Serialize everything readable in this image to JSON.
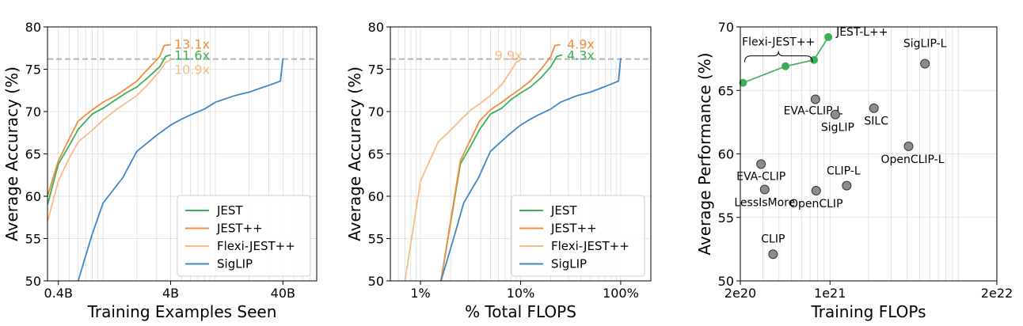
{
  "chart_data": [
    {
      "type": "line",
      "xscale": "log",
      "xlabel": "Training Examples Seen",
      "ylabel": "Average Accuracy (%)",
      "xlim": [
        0.32,
        80
      ],
      "ylim": [
        50,
        80
      ],
      "xticks": [
        {
          "v": 0.4,
          "label": "0.4B"
        },
        {
          "v": 4,
          "label": "4B"
        },
        {
          "v": 40,
          "label": "40B"
        }
      ],
      "yticks": [
        50,
        55,
        60,
        65,
        70,
        75,
        80
      ],
      "hline": 76.2,
      "series": [
        {
          "name": "JEST",
          "color": "#3cae5a",
          "points": [
            [
              0.32,
              59
            ],
            [
              0.4,
              63.8
            ],
            [
              0.5,
              66
            ],
            [
              0.6,
              67.9
            ],
            [
              0.8,
              69.7
            ],
            [
              1.0,
              70.4
            ],
            [
              1.3,
              71.4
            ],
            [
              1.6,
              72.2
            ],
            [
              2.0,
              72.9
            ],
            [
              2.5,
              74.0
            ],
            [
              3.2,
              75.3
            ],
            [
              3.6,
              76.5
            ],
            [
              4.0,
              76.7
            ]
          ]
        },
        {
          "name": "JEST++",
          "color": "#f08c3a",
          "points": [
            [
              0.32,
              60
            ],
            [
              0.4,
              64.2
            ],
            [
              0.5,
              66.8
            ],
            [
              0.6,
              68.9
            ],
            [
              0.8,
              70.2
            ],
            [
              1.0,
              71.1
            ],
            [
              1.3,
              71.9
            ],
            [
              1.6,
              72.7
            ],
            [
              2.0,
              73.6
            ],
            [
              2.5,
              75.0
            ],
            [
              3.2,
              76.5
            ],
            [
              3.5,
              77.8
            ],
            [
              4.0,
              77.9
            ]
          ]
        },
        {
          "name": "Flexi-JEST++",
          "color": "#f7bc86",
          "points": [
            [
              0.32,
              57
            ],
            [
              0.4,
              61.8
            ],
            [
              0.5,
              64.5
            ],
            [
              0.6,
              66.4
            ],
            [
              0.8,
              67.8
            ],
            [
              1.0,
              69.0
            ],
            [
              1.3,
              70.2
            ],
            [
              1.6,
              71.0
            ],
            [
              2.0,
              71.9
            ],
            [
              2.5,
              73.2
            ],
            [
              3.2,
              74.8
            ],
            [
              3.6,
              75.8
            ],
            [
              4.0,
              76.1
            ]
          ]
        },
        {
          "name": "SigLIP",
          "color": "#3f88c5",
          "points": [
            [
              0.6,
              50
            ],
            [
              0.8,
              55.5
            ],
            [
              1.0,
              59.2
            ],
            [
              1.5,
              62.2
            ],
            [
              2.0,
              65.3
            ],
            [
              3.0,
              67.2
            ],
            [
              4.0,
              68.4
            ],
            [
              5.0,
              69.1
            ],
            [
              6.0,
              69.6
            ],
            [
              8.0,
              70.3
            ],
            [
              10,
              71.1
            ],
            [
              15,
              71.9
            ],
            [
              20,
              72.3
            ],
            [
              30,
              73.1
            ],
            [
              38,
              73.6
            ],
            [
              40,
              76.3
            ]
          ]
        }
      ],
      "annotations": [
        {
          "text": "13.1x",
          "color": "#f08c3a",
          "x": 4.3,
          "y": 78.0
        },
        {
          "text": "11.6x",
          "color": "#3cae5a",
          "x": 4.3,
          "y": 76.7
        },
        {
          "text": "10.9x",
          "color": "#f7bc86",
          "x": 4.3,
          "y": 75.0
        }
      ],
      "legend": {
        "position": "bottom-right",
        "entries": [
          "JEST",
          "JEST++",
          "Flexi-JEST++",
          "SigLIP"
        ]
      }
    },
    {
      "type": "line",
      "xscale": "log",
      "xlabel": "% Total FLOPS",
      "ylabel": "Average Accuracy (%)",
      "xlim": [
        0.5,
        200
      ],
      "ylim": [
        50,
        80
      ],
      "xticks": [
        {
          "v": 1,
          "label": "1%"
        },
        {
          "v": 10,
          "label": "10%"
        },
        {
          "v": 100,
          "label": "100%"
        }
      ],
      "yticks": [
        50,
        55,
        60,
        65,
        70,
        75,
        80
      ],
      "hline": 76.2,
      "series": [
        {
          "name": "JEST",
          "color": "#3cae5a",
          "points": [
            [
              1.6,
              50
            ],
            [
              2.5,
              63.8
            ],
            [
              3.2,
              66
            ],
            [
              3.9,
              67.9
            ],
            [
              5,
              69.7
            ],
            [
              6.5,
              70.4
            ],
            [
              8,
              71.4
            ],
            [
              10,
              72.2
            ],
            [
              12.5,
              72.9
            ],
            [
              16,
              74.0
            ],
            [
              20,
              75.3
            ],
            [
              23,
              76.5
            ],
            [
              26,
              76.7
            ]
          ]
        },
        {
          "name": "JEST++",
          "color": "#f08c3a",
          "points": [
            [
              1.6,
              50
            ],
            [
              2.5,
              64.2
            ],
            [
              3.2,
              66.8
            ],
            [
              3.9,
              68.9
            ],
            [
              5,
              70.2
            ],
            [
              6.5,
              71.1
            ],
            [
              8,
              71.9
            ],
            [
              10,
              72.7
            ],
            [
              12.5,
              73.6
            ],
            [
              16,
              75.0
            ],
            [
              20,
              76.5
            ],
            [
              22,
              77.8
            ],
            [
              25,
              77.9
            ]
          ]
        },
        {
          "name": "Flexi-JEST++",
          "color": "#f7bc86",
          "points": [
            [
              0.7,
              50
            ],
            [
              1.0,
              61.8
            ],
            [
              1.5,
              66.4
            ],
            [
              2,
              67.8
            ],
            [
              2.5,
              69.0
            ],
            [
              3.2,
              70.2
            ],
            [
              4,
              71.0
            ],
            [
              5,
              71.9
            ],
            [
              6.5,
              73.2
            ],
            [
              8,
              74.8
            ],
            [
              9,
              75.8
            ],
            [
              10,
              76.1
            ]
          ]
        },
        {
          "name": "SigLIP",
          "color": "#3f88c5",
          "points": [
            [
              1.6,
              50
            ],
            [
              2.2,
              55.5
            ],
            [
              2.7,
              59.2
            ],
            [
              3.8,
              62.2
            ],
            [
              5,
              65.3
            ],
            [
              7.5,
              67.2
            ],
            [
              10,
              68.4
            ],
            [
              12.5,
              69.1
            ],
            [
              15,
              69.6
            ],
            [
              20,
              70.3
            ],
            [
              25,
              71.1
            ],
            [
              37,
              71.9
            ],
            [
              50,
              72.3
            ],
            [
              75,
              73.1
            ],
            [
              95,
              73.6
            ],
            [
              100,
              76.3
            ]
          ]
        }
      ],
      "annotations": [
        {
          "text": "4.9x",
          "color": "#f08c3a",
          "x": 29,
          "y": 78.0
        },
        {
          "text": "4.3x",
          "color": "#3cae5a",
          "x": 29,
          "y": 76.7
        },
        {
          "text": "9.9x",
          "color": "#f7bc86",
          "x": 5.5,
          "y": 76.7
        }
      ],
      "legend": {
        "position": "bottom-right",
        "entries": [
          "JEST",
          "JEST++",
          "Flexi-JEST++",
          "SigLIP"
        ]
      }
    },
    {
      "type": "scatter",
      "xscale": "log",
      "xlabel": "Training FLOPs",
      "ylabel": "Average Performance (%)",
      "xlim": [
        2e+20,
        2e+22
      ],
      "ylim": [
        50,
        70
      ],
      "xticks": [
        {
          "v": 2e+20,
          "label": "2e20"
        },
        {
          "v": 1e+21,
          "label": "1e21"
        },
        {
          "v": 2e+22,
          "label": "2e22"
        }
      ],
      "yticks": [
        50,
        55,
        60,
        65,
        70
      ],
      "line_series": {
        "name": "JEST",
        "color": "#3cae5a",
        "points": [
          {
            "label": "",
            "x": 2.1e+20,
            "y": 65.6
          },
          {
            "label": "",
            "x": 4.5e+20,
            "y": 66.9
          },
          {
            "label": "",
            "x": 7.5e+20,
            "y": 67.4
          },
          {
            "label": "JEST-L++",
            "x": 9.7e+20,
            "y": 69.2
          }
        ]
      },
      "bracket_label": "Flexi-JEST++",
      "points": [
        {
          "label": "SigLIP-L",
          "x": 5.5e+21,
          "y": 67.1
        },
        {
          "label": "EVA-CLIP-L",
          "x": 7.7e+20,
          "y": 64.3
        },
        {
          "label": "SigLIP",
          "x": 1.1e+21,
          "y": 63.1
        },
        {
          "label": "SILC",
          "x": 2.2e+21,
          "y": 63.6
        },
        {
          "label": "OpenCLIP-L",
          "x": 4.1e+21,
          "y": 60.6
        },
        {
          "label": "EVA-CLIP",
          "x": 2.9e+20,
          "y": 59.2
        },
        {
          "label": "LessIsMore",
          "x": 3.1e+20,
          "y": 57.2
        },
        {
          "label": "CLIP-L",
          "x": 1.35e+21,
          "y": 57.5
        },
        {
          "label": "OpenCLIP",
          "x": 7.8e+20,
          "y": 57.1
        },
        {
          "label": "CLIP",
          "x": 3.6e+20,
          "y": 52.1
        }
      ]
    }
  ]
}
